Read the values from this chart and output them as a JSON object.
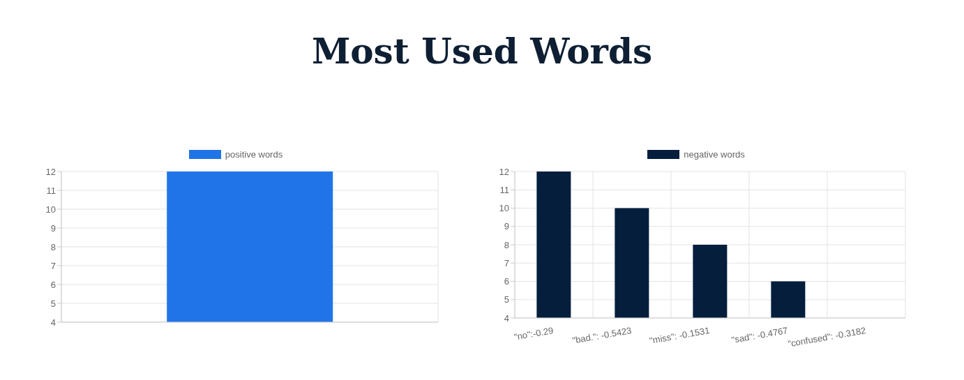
{
  "chart_data": [
    {
      "type": "bar",
      "title": "Most Used Words",
      "categories": [
        null
      ],
      "series": [
        {
          "name": "positive words",
          "color": "#2174e8",
          "values": [
            12
          ]
        }
      ],
      "ylim": [
        4,
        12
      ],
      "yticks": [
        4,
        5,
        6,
        7,
        8,
        9,
        10,
        11,
        12
      ],
      "grid": true,
      "legend": "top"
    },
    {
      "type": "bar",
      "categories": [
        "\"no\":-0.29",
        "\"bad.\": -0.5423",
        "\"miss\": -0.1531",
        "\"sad\": -0.4767",
        "\"confused\": -0.3182"
      ],
      "series": [
        {
          "name": "negative words",
          "color": "#041e3c",
          "values": [
            12,
            10,
            8,
            6,
            4
          ]
        }
      ],
      "ylim": [
        4,
        12
      ],
      "yticks": [
        4,
        5,
        6,
        7,
        8,
        9,
        10,
        11,
        12
      ],
      "grid": true,
      "legend": "top"
    }
  ]
}
